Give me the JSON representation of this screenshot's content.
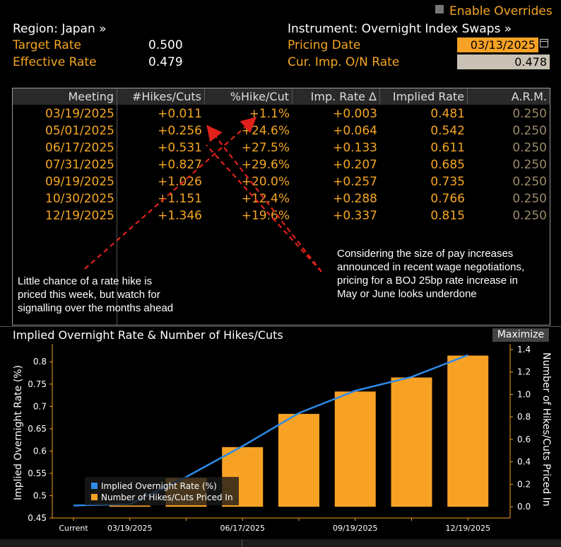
{
  "overrides": {
    "label": "Enable Overrides"
  },
  "header": {
    "region": "Region: Japan »",
    "instrument": "Instrument: Overnight Index Swaps »",
    "target_rate_label": "Target Rate",
    "target_rate_value": "0.500",
    "effective_rate_label": "Effective Rate",
    "effective_rate_value": "0.479",
    "pricing_date_label": "Pricing Date",
    "pricing_date_value": "03/13/2025",
    "cur_imp_label": "Cur. Imp. O/N Rate",
    "cur_imp_value": "0.478"
  },
  "table": {
    "columns": [
      "Meeting",
      "#Hikes/Cuts",
      "%Hike/Cut",
      "Imp. Rate Δ",
      "Implied Rate",
      "A.R.M."
    ],
    "rows": [
      [
        "03/19/2025",
        "+0.011",
        "+1.1%",
        "+0.003",
        "0.481",
        "0.250"
      ],
      [
        "05/01/2025",
        "+0.256",
        "+24.6%",
        "+0.064",
        "0.542",
        "0.250"
      ],
      [
        "06/17/2025",
        "+0.531",
        "+27.5%",
        "+0.133",
        "0.611",
        "0.250"
      ],
      [
        "07/31/2025",
        "+0.827",
        "+29.6%",
        "+0.207",
        "0.685",
        "0.250"
      ],
      [
        "09/19/2025",
        "+1.026",
        "+20.0%",
        "+0.257",
        "0.735",
        "0.250"
      ],
      [
        "10/30/2025",
        "+1.151",
        "+12.4%",
        "+0.288",
        "0.766",
        "0.250"
      ],
      [
        "12/19/2025",
        "+1.346",
        "+19.6%",
        "+0.337",
        "0.815",
        "0.250"
      ]
    ]
  },
  "annotations": {
    "left_lines": [
      "Little chance of a rate hike is",
      "priced this week, but watch for",
      "signalling over the months ahead"
    ],
    "right_lines": [
      "Considering the size of pay increases",
      "announced in recent wage negotiations,",
      "pricing for a BOJ 25bp rate increase in",
      "May or June looks underdone"
    ],
    "arrow_color": "#e0211b"
  },
  "chart_header": {
    "title": "Implied Overnight Rate & Number of Hikes/Cuts",
    "maximize_label": "Maximize"
  },
  "chart_data": {
    "type": "bar",
    "categories": [
      "Current",
      "03/19/2025",
      "05/01/2025",
      "06/17/2025",
      "07/31/2025",
      "09/19/2025",
      "10/30/2025",
      "12/19/2025"
    ],
    "x_tick_labels": [
      "Current",
      "03/19/2025",
      "06/17/2025",
      "09/19/2025",
      "12/19/2025"
    ],
    "series": [
      {
        "name": "Number of Hikes/Cuts Priced In",
        "type": "bar",
        "axis": "right",
        "color": "#f7a225",
        "values": [
          null,
          0.011,
          0.256,
          0.531,
          0.827,
          1.026,
          1.151,
          1.346
        ]
      },
      {
        "name": "Implied Overnight Rate (%)",
        "type": "line",
        "axis": "left",
        "color": "#2d8be8",
        "values": [
          0.478,
          0.481,
          0.542,
          0.611,
          0.685,
          0.735,
          0.766,
          0.815
        ]
      }
    ],
    "ylabel": "Implied Overnight Rate (%)",
    "ylabel_right": "Number of Hikes/Cuts Priced In",
    "ylim": [
      0.45,
      0.84
    ],
    "yticks": [
      "0.45",
      "0.5",
      "0.55",
      "0.6",
      "0.65",
      "0.7",
      "0.75",
      "0.8"
    ],
    "ylim_right": [
      -0.1,
      1.45
    ],
    "yticks_right": [
      "0.0",
      "0.2",
      "0.4",
      "0.6",
      "0.8",
      "1.0",
      "1.2",
      "1.4"
    ],
    "legend_position": "bottom-left",
    "grid": false
  }
}
